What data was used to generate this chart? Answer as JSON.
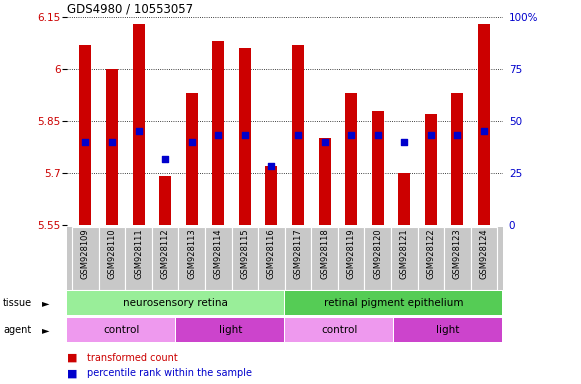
{
  "title": "GDS4980 / 10553057",
  "samples": [
    "GSM928109",
    "GSM928110",
    "GSM928111",
    "GSM928112",
    "GSM928113",
    "GSM928114",
    "GSM928115",
    "GSM928116",
    "GSM928117",
    "GSM928118",
    "GSM928119",
    "GSM928120",
    "GSM928121",
    "GSM928122",
    "GSM928123",
    "GSM928124"
  ],
  "bar_tops": [
    6.07,
    6.0,
    6.13,
    5.69,
    5.93,
    6.08,
    6.06,
    5.72,
    6.07,
    5.8,
    5.93,
    5.88,
    5.7,
    5.87,
    5.93,
    6.13
  ],
  "blue_dots": [
    5.79,
    5.79,
    5.82,
    5.74,
    5.79,
    5.81,
    5.81,
    5.72,
    5.81,
    5.79,
    5.81,
    5.81,
    5.79,
    5.81,
    5.81,
    5.82
  ],
  "bar_bottom": 5.55,
  "ylim_min": 5.55,
  "ylim_max": 6.15,
  "yticks": [
    5.55,
    5.7,
    5.85,
    6.0,
    6.15
  ],
  "ytick_labels": [
    "5.55",
    "5.7",
    "5.85",
    "6",
    "6.15"
  ],
  "right_yticks": [
    0,
    25,
    50,
    75,
    100
  ],
  "right_ytick_labels": [
    "0",
    "25",
    "50",
    "75",
    "100%"
  ],
  "bar_color": "#cc0000",
  "dot_color": "#0000cc",
  "tissue_groups": [
    {
      "label": "neurosensory retina",
      "start": 0,
      "end": 8,
      "color": "#99ee99"
    },
    {
      "label": "retinal pigment epithelium",
      "start": 8,
      "end": 16,
      "color": "#55cc55"
    }
  ],
  "agent_groups": [
    {
      "label": "control",
      "start": 0,
      "end": 4,
      "color": "#ee99ee"
    },
    {
      "label": "light",
      "start": 4,
      "end": 8,
      "color": "#cc44cc"
    },
    {
      "label": "control",
      "start": 8,
      "end": 12,
      "color": "#ee99ee"
    },
    {
      "label": "light",
      "start": 12,
      "end": 16,
      "color": "#cc44cc"
    }
  ],
  "tick_label_color_left": "#cc0000",
  "tick_label_color_right": "#0000cc"
}
